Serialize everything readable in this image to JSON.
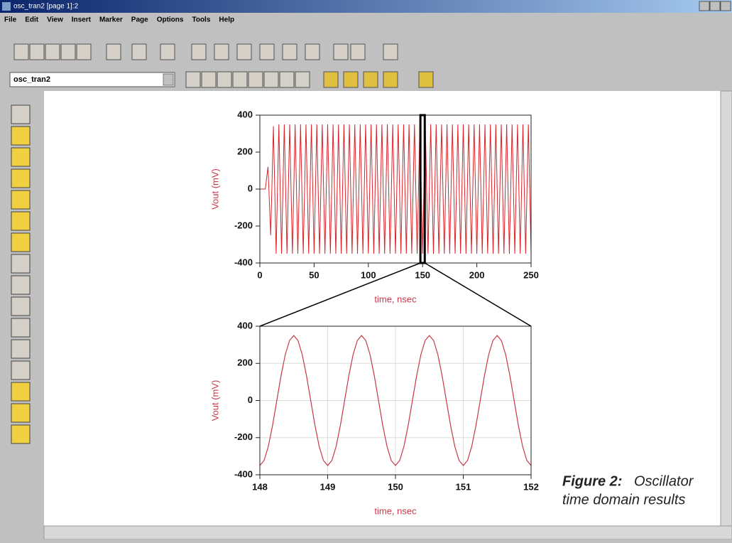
{
  "window": {
    "title": "osc_tran2 [page 1]:2",
    "menu": [
      "File",
      "Edit",
      "View",
      "Insert",
      "Marker",
      "Page",
      "Options",
      "Tools",
      "Help"
    ],
    "design_name": "osc_tran2"
  },
  "chart_data": [
    {
      "type": "line",
      "x_label": "time, nsec",
      "y_label": "Vout (mV)",
      "x": [
        0,
        2.5,
        5,
        7.5,
        10,
        12.5,
        15,
        17.5,
        20,
        22.5,
        25,
        27.5,
        30,
        32.5,
        35,
        37.5,
        40,
        42.5,
        45,
        47.5,
        50,
        52.5,
        55,
        57.5,
        60,
        62.5,
        65,
        67.5,
        70,
        72.5,
        75,
        77.5,
        80,
        82.5,
        85,
        87.5,
        90,
        92.5,
        95,
        97.5,
        100,
        102.5,
        105,
        107.5,
        110,
        112.5,
        115,
        117.5,
        120,
        122.5,
        125,
        127.5,
        130,
        132.5,
        135,
        137.5,
        140,
        142.5,
        145,
        147.5,
        150,
        152.5,
        155,
        157.5,
        160,
        162.5,
        165,
        167.5,
        170,
        172.5,
        175,
        177.5,
        180,
        182.5,
        185,
        187.5,
        190,
        192.5,
        195,
        197.5,
        200,
        202.5,
        205,
        207.5,
        210,
        212.5,
        215,
        217.5,
        220,
        222.5,
        225,
        227.5,
        230,
        232.5,
        235,
        237.5,
        240,
        242.5,
        245,
        247.5,
        250
      ],
      "series": [
        {
          "color": "#d8232a",
          "values": [
            0,
            0,
            0,
            120,
            -250,
            340,
            -350,
            350,
            -350,
            350,
            -350,
            350,
            -350,
            350,
            -350,
            350,
            -350,
            350,
            -350,
            350,
            -350,
            350,
            -350,
            350,
            -350,
            350,
            -350,
            350,
            -350,
            350,
            -350,
            350,
            -350,
            350,
            -350,
            350,
            -350,
            350,
            -350,
            350,
            -350,
            350,
            -350,
            350,
            -350,
            350,
            -350,
            350,
            -350,
            350,
            -350,
            350,
            -350,
            350,
            -350,
            350,
            -350,
            350,
            -350,
            350,
            -350,
            350,
            -350,
            350,
            -350,
            350,
            -350,
            350,
            -350,
            350,
            -350,
            350,
            -350,
            350,
            -350,
            350,
            -350,
            350,
            -350,
            350,
            -350,
            350,
            -350,
            350,
            -350,
            350,
            -350,
            350,
            -350,
            350,
            -350,
            350,
            -350,
            350,
            -350,
            350,
            -350,
            350,
            -350,
            350,
            -350
          ]
        }
      ],
      "xlim": [
        0,
        250
      ],
      "ylim": [
        -400,
        400
      ],
      "xticks": [
        0,
        50,
        100,
        150,
        200,
        250
      ],
      "yticks": [
        -400,
        -200,
        0,
        200,
        400
      ],
      "grid": false
    },
    {
      "type": "line",
      "x_label": "time, nsec",
      "y_label": "Vout (mV)",
      "x": [
        148,
        148.0625,
        148.125,
        148.1875,
        148.25,
        148.3125,
        148.375,
        148.4375,
        148.5,
        148.5625,
        148.625,
        148.6875,
        148.75,
        148.8125,
        148.875,
        148.9375,
        149,
        149.0625,
        149.125,
        149.1875,
        149.25,
        149.3125,
        149.375,
        149.4375,
        149.5,
        149.5625,
        149.625,
        149.6875,
        149.75,
        149.8125,
        149.875,
        149.9375,
        150,
        150.0625,
        150.125,
        150.1875,
        150.25,
        150.3125,
        150.375,
        150.4375,
        150.5,
        150.5625,
        150.625,
        150.6875,
        150.75,
        150.8125,
        150.875,
        150.9375,
        151,
        151.0625,
        151.125,
        151.1875,
        151.25,
        151.3125,
        151.375,
        151.4375,
        151.5,
        151.5625,
        151.625,
        151.6875,
        151.75,
        151.8125,
        151.875,
        151.9375,
        152
      ],
      "series": [
        {
          "color": "#c8384a",
          "values": [
            -350,
            -323,
            -247,
            -134,
            0,
            134,
            247,
            323,
            350,
            323,
            247,
            134,
            0,
            -134,
            -247,
            -323,
            -350,
            -323,
            -247,
            -134,
            0,
            134,
            247,
            323,
            350,
            323,
            247,
            134,
            0,
            -134,
            -247,
            -323,
            -350,
            -323,
            -247,
            -134,
            0,
            134,
            247,
            323,
            350,
            323,
            247,
            134,
            0,
            -134,
            -247,
            -323,
            -350,
            -323,
            -247,
            -134,
            0,
            134,
            247,
            323,
            350,
            323,
            247,
            134,
            0,
            -134,
            -247,
            -323,
            -350
          ]
        }
      ],
      "xlim": [
        148,
        152
      ],
      "ylim": [
        -400,
        400
      ],
      "xticks": [
        148,
        149,
        150,
        151,
        152
      ],
      "yticks": [
        -400,
        -200,
        0,
        200,
        400
      ],
      "grid": true
    }
  ],
  "caption": {
    "label": "Figure 2:",
    "lines": [
      "Oscillator",
      "time domain results"
    ]
  }
}
